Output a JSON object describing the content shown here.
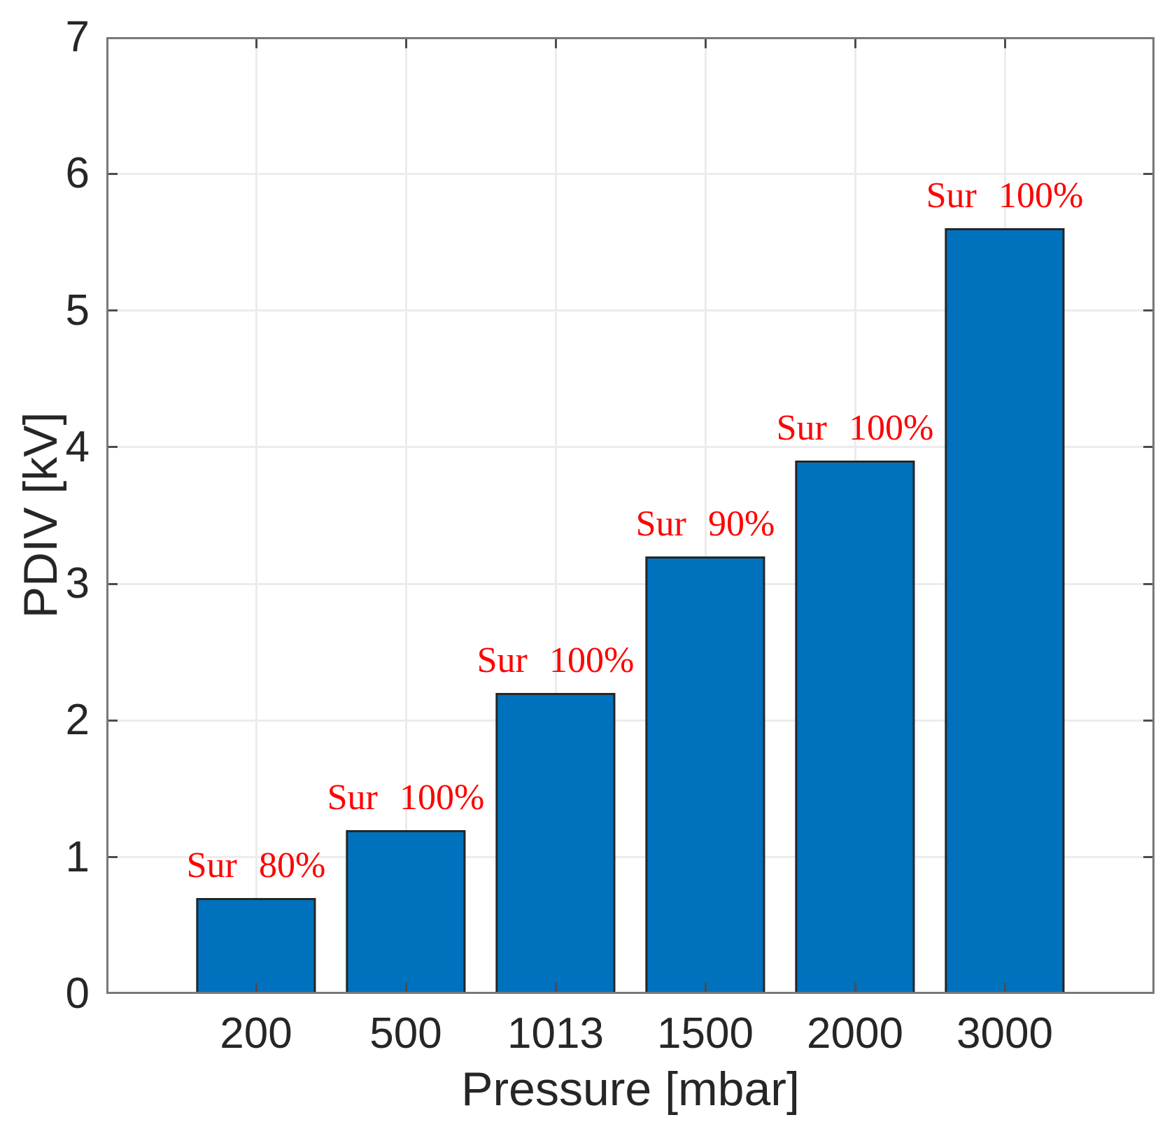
{
  "figure": {
    "background_color": "#ffffff",
    "frame_color": "#787878",
    "tick_color": "#4d4d4d",
    "grid_color": "#ececec",
    "text_color": "#262626"
  },
  "chart_data": {
    "type": "bar",
    "title": "",
    "xlabel": "Pressure [mbar]",
    "ylabel": "PDIV [kV]",
    "categories": [
      "200",
      "500",
      "1013",
      "1500",
      "2000",
      "3000"
    ],
    "values": [
      0.7,
      1.2,
      2.2,
      3.2,
      3.9,
      5.6
    ],
    "bar_labels": [
      "Sur 80%",
      "Sur 100%",
      "Sur 100%",
      "Sur 90%",
      "Sur 100%",
      "Sur 100%"
    ],
    "bar_label_color": "#ff0000",
    "bar_fill_color": "#0072bd",
    "bar_edge_color": "#262626",
    "ylim": [
      0,
      7
    ],
    "yticks": [
      "0",
      "1",
      "2",
      "3",
      "4",
      "5",
      "6",
      "7"
    ],
    "bar_width_fraction": 0.8,
    "grid": true,
    "legend": null
  }
}
